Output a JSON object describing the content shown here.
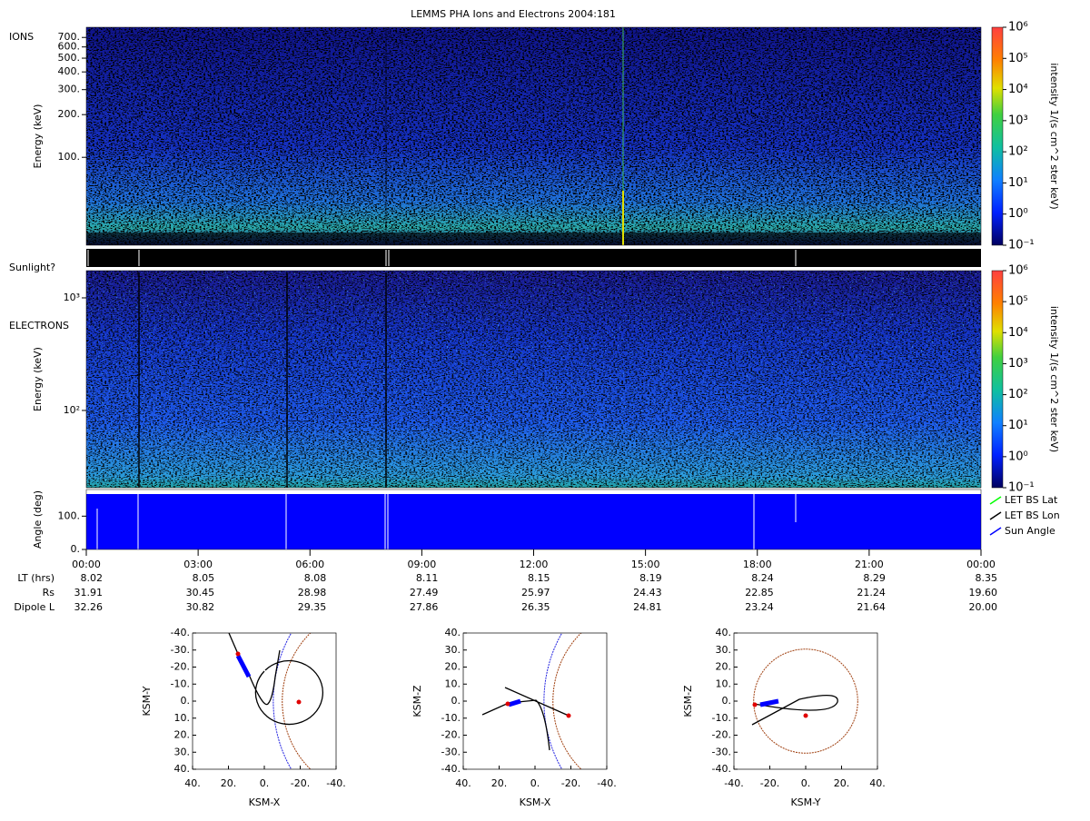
{
  "title": "LEMMS PHA Ions and Electrons  2004:181",
  "ions": {
    "label": "IONS",
    "ylabel": "Energy (keV)",
    "ylim": [
      24,
      826
    ],
    "yticks": [
      {
        "value": 700,
        "label": "700."
      },
      {
        "value": 600,
        "label": "600."
      },
      {
        "value": 500,
        "label": "500."
      },
      {
        "value": 400,
        "label": "400."
      },
      {
        "value": 300,
        "label": "300."
      },
      {
        "value": 200,
        "label": "200."
      },
      {
        "value": 100,
        "label": "100."
      }
    ],
    "colorbar": {
      "label": "intensity 1/(s cm^2 ster keV)",
      "lim": [
        0.1,
        1000000
      ],
      "ticks": [
        {
          "value": 1000000,
          "label": "10⁶"
        },
        {
          "value": 100000,
          "label": "10⁵"
        },
        {
          "value": 10000,
          "label": "10⁴"
        },
        {
          "value": 1000,
          "label": "10³"
        },
        {
          "value": 100,
          "label": "10²"
        },
        {
          "value": 10,
          "label": "10¹"
        },
        {
          "value": 1,
          "label": "10⁰"
        },
        {
          "value": 0.1,
          "label": "10⁻¹"
        }
      ]
    }
  },
  "sunlight": {
    "label": "Sunlight?"
  },
  "electrons": {
    "label": "ELECTRONS",
    "ylabel": "Energy (keV)",
    "ylim": [
      20.6,
      1745
    ],
    "yticks": [
      {
        "value": 1000,
        "label": "10³"
      },
      {
        "value": 100,
        "label": "10²"
      }
    ],
    "colorbar": {
      "label": "intensity 1/(s cm^2 ster keV)",
      "lim": [
        0.1,
        1000000
      ],
      "ticks": [
        {
          "value": 1000000,
          "label": "10⁶"
        },
        {
          "value": 100000,
          "label": "10⁵"
        },
        {
          "value": 10000,
          "label": "10⁴"
        },
        {
          "value": 1000,
          "label": "10³"
        },
        {
          "value": 100,
          "label": "10²"
        },
        {
          "value": 10,
          "label": "10¹"
        },
        {
          "value": 1,
          "label": "10⁰"
        },
        {
          "value": 0.1,
          "label": "10⁻¹"
        }
      ]
    }
  },
  "angle": {
    "ylabel": "Angle (deg)",
    "ylim": [
      0,
      180
    ],
    "yticks": [
      {
        "value": 100,
        "label": "100."
      },
      {
        "value": 0,
        "label": "0."
      }
    ],
    "legend": [
      {
        "name": "LET BS Lat",
        "color": "#00ff00"
      },
      {
        "name": "LET BS Lon",
        "color": "#000000"
      },
      {
        "name": "Sun Angle",
        "color": "#0000ff"
      }
    ]
  },
  "time_axis": {
    "ticks": [
      "00:00",
      "03:00",
      "06:00",
      "09:00",
      "12:00",
      "15:00",
      "18:00",
      "21:00",
      "00:00"
    ]
  },
  "ephemeris": {
    "rows": [
      {
        "label": "LT (hrs)",
        "values": [
          "8.02",
          "8.05",
          "8.08",
          "8.11",
          "8.15",
          "8.19",
          "8.24",
          "8.29",
          "8.35"
        ]
      },
      {
        "label": "Rs",
        "values": [
          "31.91",
          "30.45",
          "28.98",
          "27.49",
          "25.97",
          "24.43",
          "22.85",
          "21.24",
          "19.60"
        ]
      },
      {
        "label": "Dipole L",
        "values": [
          "32.26",
          "30.82",
          "29.35",
          "27.86",
          "26.35",
          "24.81",
          "23.24",
          "21.64",
          "20.00"
        ]
      }
    ]
  },
  "orbits": [
    {
      "xlabel": "KSM-X",
      "ylabel": "KSM-Y",
      "xlim": [
        40,
        -40
      ],
      "ylim": [
        40,
        -40
      ],
      "xticks": [
        {
          "value": 40,
          "label": "40."
        },
        {
          "value": 20,
          "label": "20."
        },
        {
          "value": 0,
          "label": "0."
        },
        {
          "value": -20,
          "label": "-20."
        },
        {
          "value": -40,
          "label": "-40."
        }
      ],
      "yticks": [
        {
          "value": -40,
          "label": "-40."
        },
        {
          "value": -30,
          "label": "-30."
        },
        {
          "value": -20,
          "label": "-20."
        },
        {
          "value": -10,
          "label": "-10."
        },
        {
          "value": 0,
          "label": "0."
        },
        {
          "value": 10,
          "label": "10."
        },
        {
          "value": 20,
          "label": "20."
        },
        {
          "value": 30,
          "label": "30."
        },
        {
          "value": 40,
          "label": "40."
        }
      ]
    },
    {
      "xlabel": "KSM-X",
      "ylabel": "KSM-Z",
      "xlim": [
        40,
        -40
      ],
      "ylim": [
        -40,
        40
      ],
      "xticks": [
        {
          "value": 40,
          "label": "40."
        },
        {
          "value": 20,
          "label": "20."
        },
        {
          "value": 0,
          "label": "0."
        },
        {
          "value": -20,
          "label": "-20."
        },
        {
          "value": -40,
          "label": "-40."
        }
      ],
      "yticks": [
        {
          "value": 40,
          "label": "40."
        },
        {
          "value": 30,
          "label": "30."
        },
        {
          "value": 20,
          "label": "20."
        },
        {
          "value": 10,
          "label": "10."
        },
        {
          "value": 0,
          "label": "0."
        },
        {
          "value": -10,
          "label": "-10."
        },
        {
          "value": -20,
          "label": "-20."
        },
        {
          "value": -30,
          "label": "-30."
        },
        {
          "value": -40,
          "label": "-40."
        }
      ]
    },
    {
      "xlabel": "KSM-Y",
      "ylabel": "KSM-Z",
      "xlim": [
        -40,
        40
      ],
      "ylim": [
        -40,
        40
      ],
      "xticks": [
        {
          "value": -40,
          "label": "-40."
        },
        {
          "value": -20,
          "label": "-20."
        },
        {
          "value": 0,
          "label": "0."
        },
        {
          "value": 20,
          "label": "20."
        },
        {
          "value": 40,
          "label": "40."
        }
      ],
      "yticks": [
        {
          "value": 40,
          "label": "40."
        },
        {
          "value": 30,
          "label": "30."
        },
        {
          "value": 20,
          "label": "20."
        },
        {
          "value": 10,
          "label": "10."
        },
        {
          "value": 0,
          "label": "0."
        },
        {
          "value": -10,
          "label": "-10."
        },
        {
          "value": -20,
          "label": "-20."
        },
        {
          "value": -30,
          "label": "-30."
        },
        {
          "value": -40,
          "label": "-40."
        }
      ]
    }
  ]
}
